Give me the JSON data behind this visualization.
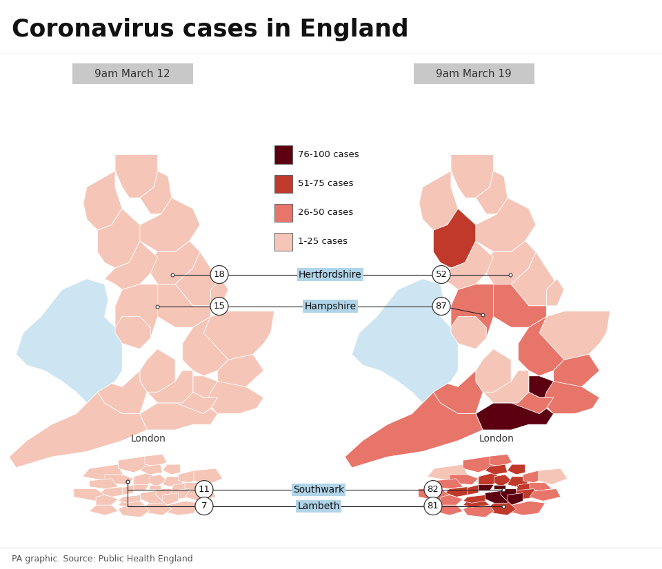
{
  "title": "Coronavirus cases in England",
  "subtitle_left": "9am March 12",
  "subtitle_right": "9am March 19",
  "source": "PA graphic. Source: Public Health England",
  "bg_color": "#b0d4e8",
  "title_bg": "#ffffff",
  "border_color": "#ffffff",
  "c_125": "#f5c6b8",
  "c_2650": "#e8756a",
  "c_5175": "#c0392b",
  "c_76100": "#5c0011",
  "c_wales": "#cde5f2",
  "c_scotland": "#cde5f2",
  "legend_entries": [
    {
      "label": "76-100 cases",
      "color": "#5c0011"
    },
    {
      "label": "51-75 cases",
      "color": "#c0392b"
    },
    {
      "label": "26-50 cases",
      "color": "#e8756a"
    },
    {
      "label": "1-25 cases",
      "color": "#f5c6b8"
    }
  ],
  "annotations": [
    {
      "val_l": "18",
      "val_r": "52",
      "label": "Hertfordshire"
    },
    {
      "val_l": "15",
      "val_r": "87",
      "label": "Hampshire"
    },
    {
      "val_l": "11",
      "val_r": "82",
      "label": "Southwark"
    },
    {
      "val_l": "7",
      "val_r": "81",
      "label": "Lambeth"
    }
  ]
}
